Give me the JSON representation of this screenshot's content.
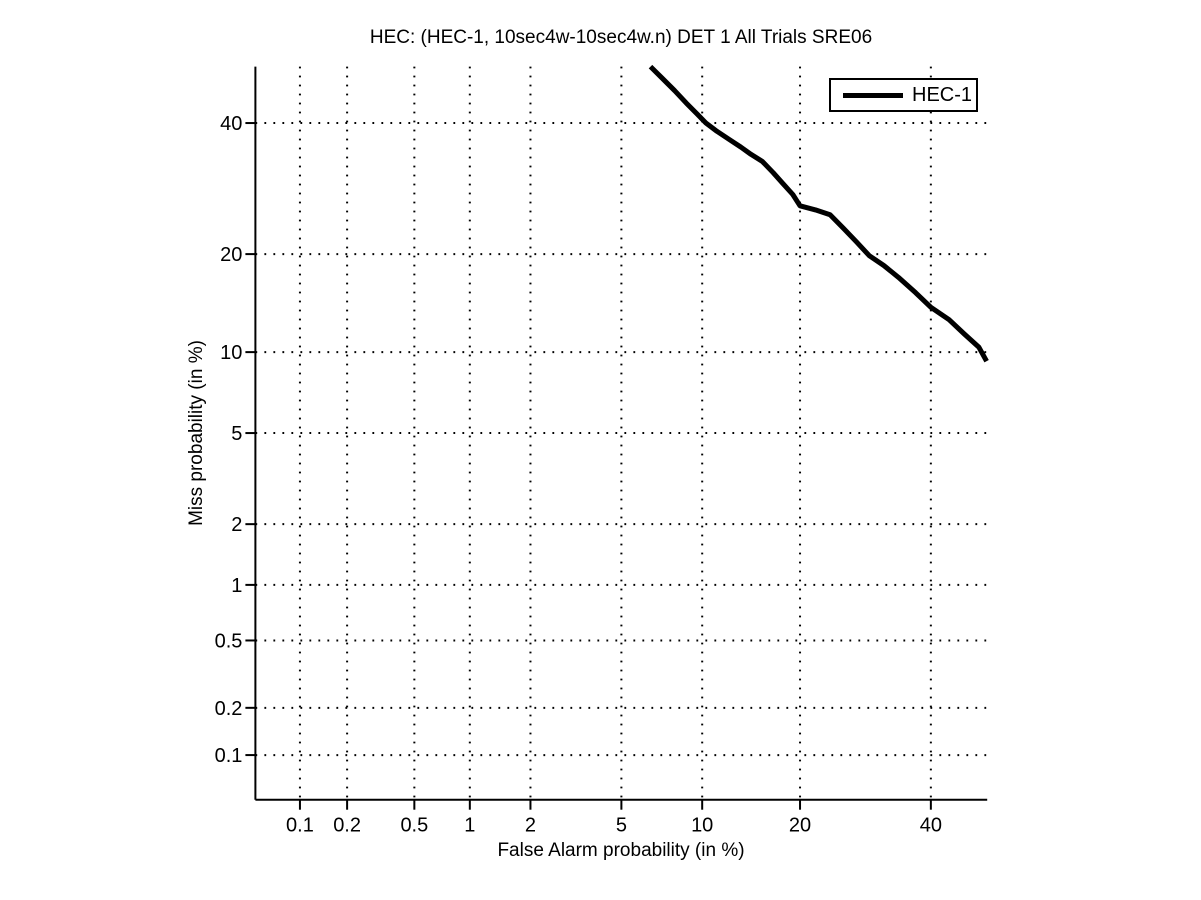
{
  "figure": {
    "background": "#ffffff"
  },
  "chart_data": {
    "type": "line",
    "plot_kind": "DET curve",
    "scale": "probit-probit (normal deviate on both axes)",
    "title": "HEC: (HEC-1, 10sec4w-10sec4w.n) DET 1 All Trials SRE06",
    "xlabel": "False Alarm probability (in %)",
    "ylabel": "Miss probability (in %)",
    "xlim_pct": [
      0.05,
      50
    ],
    "ylim_pct": [
      0.05,
      50
    ],
    "x_ticks_pct": [
      0.1,
      0.2,
      0.5,
      1,
      2,
      5,
      10,
      20,
      40
    ],
    "x_tick_labels": [
      "0.1",
      "0.2",
      "0.5",
      "1",
      "2",
      "5",
      "10",
      "20",
      "40"
    ],
    "y_ticks_pct": [
      0.1,
      0.2,
      0.5,
      1,
      2,
      5,
      10,
      20,
      40
    ],
    "y_tick_labels": [
      "0.1",
      "0.2",
      "0.5",
      "1",
      "2",
      "5",
      "10",
      "20",
      "40"
    ],
    "grid": true,
    "grid_style": "dotted",
    "box": "left-and-bottom-axes-only",
    "axis_color": "#000000",
    "grid_color": "#000000",
    "legend": {
      "position": "top-right",
      "border_color": "#000000",
      "background": "#ffffff",
      "entries": [
        {
          "label": "HEC-1",
          "color": "#000000",
          "line_width": 5
        }
      ]
    },
    "series": [
      {
        "name": "HEC-1",
        "color": "#000000",
        "line_width": 5,
        "points_fa_miss_pct": [
          [
            6.5,
            50.0
          ],
          [
            7.2,
            47.9
          ],
          [
            8.0,
            45.7
          ],
          [
            8.8,
            43.5
          ],
          [
            9.6,
            41.6
          ],
          [
            10.3,
            40.0
          ],
          [
            11.2,
            38.6
          ],
          [
            12.3,
            37.2
          ],
          [
            13.4,
            35.9
          ],
          [
            14.4,
            34.7
          ],
          [
            15.6,
            33.5
          ],
          [
            16.8,
            31.7
          ],
          [
            17.9,
            30.0
          ],
          [
            19.1,
            28.3
          ],
          [
            20.0,
            26.6
          ],
          [
            22.0,
            26.0
          ],
          [
            24.0,
            25.3
          ],
          [
            25.9,
            23.4
          ],
          [
            27.8,
            21.6
          ],
          [
            29.8,
            19.8
          ],
          [
            32.1,
            18.6
          ],
          [
            34.5,
            17.2
          ],
          [
            37.4,
            15.5
          ],
          [
            40.0,
            14.0
          ],
          [
            43.2,
            12.8
          ],
          [
            45.9,
            11.5
          ],
          [
            48.5,
            10.4
          ],
          [
            49.9,
            9.3
          ]
        ]
      }
    ]
  }
}
